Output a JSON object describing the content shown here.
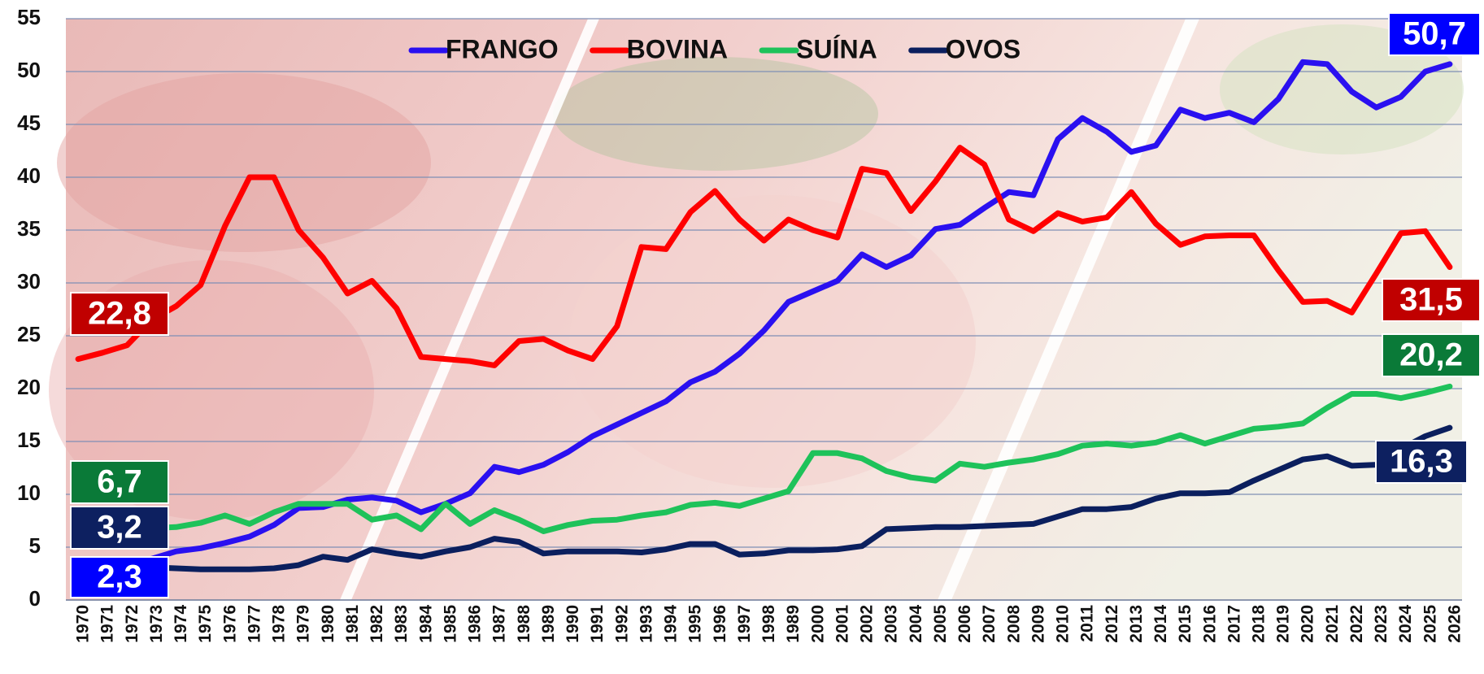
{
  "chart_data": {
    "type": "line",
    "categories": [
      "1970",
      "1971",
      "1972",
      "1973",
      "1974",
      "1975",
      "1976",
      "1977",
      "1978",
      "1979",
      "1980",
      "1981",
      "1982",
      "1983",
      "1984",
      "1985",
      "1986",
      "1987",
      "1988",
      "1989",
      "1990",
      "1991",
      "1992",
      "1993",
      "1994",
      "1995",
      "1996",
      "1997",
      "1998",
      "1989",
      "2000",
      "2001",
      "2002",
      "2003",
      "2004",
      "2005",
      "2006",
      "2007",
      "2008",
      "2009",
      "2010",
      "2011",
      "2012",
      "2013",
      "2014",
      "2015",
      "2016",
      "2017",
      "2018",
      "2019",
      "2020",
      "2021",
      "2022",
      "2023",
      "2024",
      "2025",
      "2026"
    ],
    "series": [
      {
        "name": "FRANGO",
        "color": "#2a10f0",
        "label_color": "#0000ff",
        "values": [
          2.3,
          2.8,
          3.3,
          3.9,
          4.6,
          4.9,
          5.4,
          6.0,
          7.1,
          8.7,
          8.8,
          9.5,
          9.7,
          9.4,
          8.3,
          9.1,
          10.1,
          12.6,
          12.1,
          12.8,
          14.0,
          15.5,
          16.6,
          17.7,
          18.8,
          20.6,
          21.6,
          23.3,
          25.5,
          28.2,
          29.2,
          30.2,
          32.7,
          31.5,
          32.6,
          35.1,
          35.5,
          37.1,
          38.6,
          38.3,
          43.6,
          45.6,
          44.3,
          42.4,
          43.0,
          46.4,
          45.6,
          46.1,
          45.2,
          47.4,
          50.9,
          50.7,
          48.1,
          46.6,
          47.6,
          50.0,
          50.7
        ],
        "value_labels": [
          "2,3",
          null,
          null,
          null,
          null,
          null,
          null,
          null,
          null,
          null,
          null,
          null,
          null,
          null,
          null,
          null,
          null,
          null,
          null,
          null,
          null,
          null,
          null,
          null,
          null,
          null,
          null,
          null,
          null,
          null,
          null,
          null,
          null,
          null,
          null,
          null,
          null,
          null,
          null,
          null,
          null,
          null,
          null,
          null,
          null,
          null,
          null,
          null,
          null,
          null,
          null,
          null,
          null,
          null,
          null,
          null,
          "50,7"
        ]
      },
      {
        "name": "BOVINA",
        "color": "#ff0000",
        "label_color": "#c00000",
        "values": [
          22.8,
          23.4,
          24.1,
          26.5,
          27.8,
          29.8,
          35.4,
          40.0,
          40.0,
          35.0,
          32.4,
          29.0,
          30.2,
          27.6,
          23.0,
          22.8,
          22.6,
          22.2,
          24.5,
          24.7,
          23.6,
          22.8,
          25.9,
          33.4,
          33.2,
          36.7,
          38.7,
          36.0,
          34.0,
          36.0,
          35.0,
          34.3,
          40.8,
          40.4,
          36.8,
          39.6,
          42.8,
          41.2,
          36.0,
          34.9,
          36.6,
          35.8,
          36.2,
          38.6,
          35.6,
          33.6,
          34.4,
          34.5,
          34.5,
          31.2,
          28.2,
          28.3,
          27.2,
          30.9,
          34.7,
          34.9,
          31.5
        ],
        "value_labels": [
          "22,8",
          null,
          null,
          null,
          null,
          null,
          null,
          null,
          null,
          null,
          null,
          null,
          null,
          null,
          null,
          null,
          null,
          null,
          null,
          null,
          null,
          null,
          null,
          null,
          null,
          null,
          null,
          null,
          null,
          null,
          null,
          null,
          null,
          null,
          null,
          null,
          null,
          null,
          null,
          null,
          null,
          null,
          null,
          null,
          null,
          null,
          null,
          null,
          null,
          null,
          null,
          null,
          null,
          null,
          null,
          null,
          "31,5"
        ]
      },
      {
        "name": "SUÍNA",
        "color": "#1ec25a",
        "label_color": "#0a7a38",
        "values": [
          6.7,
          6.8,
          6.8,
          6.8,
          6.9,
          7.3,
          8.0,
          7.2,
          8.3,
          9.1,
          9.1,
          9.1,
          7.6,
          8.0,
          6.7,
          9.1,
          7.2,
          8.5,
          7.6,
          6.5,
          7.1,
          7.5,
          7.6,
          8.0,
          8.3,
          9.0,
          9.2,
          8.9,
          9.6,
          10.3,
          13.9,
          13.9,
          13.4,
          12.2,
          11.6,
          11.3,
          12.9,
          12.6,
          13.0,
          13.3,
          13.8,
          14.6,
          14.8,
          14.6,
          14.9,
          15.6,
          14.8,
          15.5,
          16.2,
          16.4,
          16.7,
          18.2,
          19.5,
          19.5,
          19.1,
          19.6,
          20.2
        ],
        "value_labels": [
          "6,7",
          null,
          null,
          null,
          null,
          null,
          null,
          null,
          null,
          null,
          null,
          null,
          null,
          null,
          null,
          null,
          null,
          null,
          null,
          null,
          null,
          null,
          null,
          null,
          null,
          null,
          null,
          null,
          null,
          null,
          null,
          null,
          null,
          null,
          null,
          null,
          null,
          null,
          null,
          null,
          null,
          null,
          null,
          null,
          null,
          null,
          null,
          null,
          null,
          null,
          null,
          null,
          null,
          null,
          null,
          null,
          "20,2"
        ]
      },
      {
        "name": "OVOS",
        "color": "#0b1f5e",
        "label_color": "#0d2060",
        "values": [
          3.2,
          3.1,
          3.1,
          3.1,
          3.0,
          2.9,
          2.9,
          2.9,
          3.0,
          3.3,
          4.1,
          3.8,
          4.8,
          4.4,
          4.1,
          4.6,
          5.0,
          5.8,
          5.5,
          4.4,
          4.6,
          4.6,
          4.6,
          4.5,
          4.8,
          5.3,
          5.3,
          4.3,
          4.4,
          4.7,
          4.7,
          4.8,
          5.1,
          6.7,
          6.8,
          6.9,
          6.9,
          7.0,
          7.1,
          7.2,
          7.9,
          8.6,
          8.6,
          8.8,
          9.6,
          10.1,
          10.1,
          10.2,
          11.3,
          12.3,
          13.3,
          13.6,
          12.7,
          12.8,
          14.3,
          15.5,
          16.3
        ],
        "value_labels": [
          "3,2",
          null,
          null,
          null,
          null,
          null,
          null,
          null,
          null,
          null,
          null,
          null,
          null,
          null,
          null,
          null,
          null,
          null,
          null,
          null,
          null,
          null,
          null,
          null,
          null,
          null,
          null,
          null,
          null,
          null,
          null,
          null,
          null,
          null,
          null,
          null,
          null,
          null,
          null,
          null,
          null,
          null,
          null,
          null,
          null,
          null,
          null,
          null,
          null,
          null,
          null,
          null,
          null,
          null,
          null,
          null,
          "16,3"
        ]
      }
    ],
    "ylim": [
      0,
      55
    ],
    "yticks": [
      0,
      5,
      10,
      15,
      20,
      25,
      30,
      35,
      40,
      45,
      50,
      55
    ],
    "grid": true,
    "legend": "top"
  }
}
